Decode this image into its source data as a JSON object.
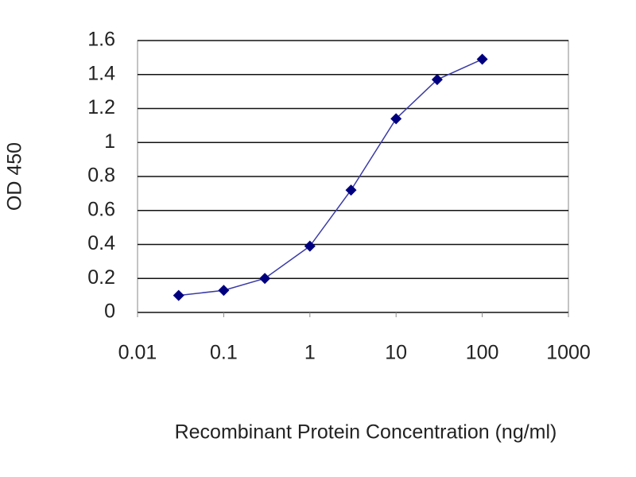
{
  "chart_data": {
    "type": "line",
    "xlabel": "Recombinant Protein Concentration (ng/ml)",
    "ylabel": "OD 450",
    "x": [
      0.03,
      0.1,
      0.3,
      1,
      3,
      10,
      30,
      100
    ],
    "series": [
      {
        "color": "#00007f",
        "values": [
          0.1,
          0.13,
          0.2,
          0.39,
          0.72,
          1.14,
          1.37,
          1.49
        ]
      }
    ],
    "xscale": "log",
    "xlim": [
      0.01,
      1000
    ],
    "xticks": [
      0.01,
      0.1,
      1,
      10,
      100,
      1000
    ],
    "ylim": [
      0,
      1.6
    ],
    "yticks": [
      0,
      0.2,
      0.4,
      0.6,
      0.8,
      1,
      1.2,
      1.4,
      1.6
    ],
    "grid": true
  }
}
